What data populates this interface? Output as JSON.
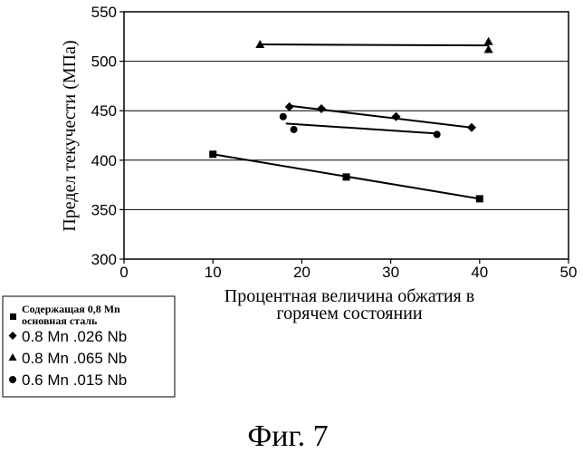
{
  "chart_data": {
    "type": "scatter",
    "title": "",
    "xlabel_line1": "Процентная величина обжатия в",
    "xlabel_line2": "горячем состоянии",
    "ylabel": "Предел текучести (МПа)",
    "xlim": [
      0,
      50
    ],
    "ylim": [
      300,
      550
    ],
    "xticks": [
      0,
      10,
      20,
      30,
      40,
      50
    ],
    "yticks": [
      300,
      350,
      400,
      450,
      500,
      550
    ],
    "grid": "horizontal",
    "series": [
      {
        "name_line1": "Содержащая 0,8 Mn",
        "name_line2": "основная сталь",
        "marker": "square",
        "points": [
          [
            10,
            406
          ],
          [
            25,
            383
          ],
          [
            40,
            361
          ]
        ],
        "trend": [
          [
            10,
            406
          ],
          [
            40,
            361
          ]
        ]
      },
      {
        "name": "0.8 Mn .026 Nb",
        "marker": "diamond",
        "points": [
          [
            18.6,
            454
          ],
          [
            22.2,
            452
          ],
          [
            30.6,
            444
          ],
          [
            39.1,
            433
          ]
        ],
        "trend": [
          [
            18.6,
            455
          ],
          [
            39.1,
            433
          ]
        ]
      },
      {
        "name": "0.8 Mn .065 Nb",
        "marker": "triangle",
        "points": [
          [
            15.3,
            517
          ],
          [
            41,
            520
          ],
          [
            41,
            512
          ]
        ],
        "trend": [
          [
            15.3,
            517
          ],
          [
            41,
            516
          ]
        ]
      },
      {
        "name": "0.6 Mn .015 Nb",
        "marker": "circle",
        "points": [
          [
            17.9,
            444
          ],
          [
            19.1,
            431
          ],
          [
            35.2,
            426
          ]
        ],
        "trend": [
          [
            18.2,
            437
          ],
          [
            35.2,
            427
          ]
        ]
      }
    ]
  },
  "caption": "Фиг. 7"
}
